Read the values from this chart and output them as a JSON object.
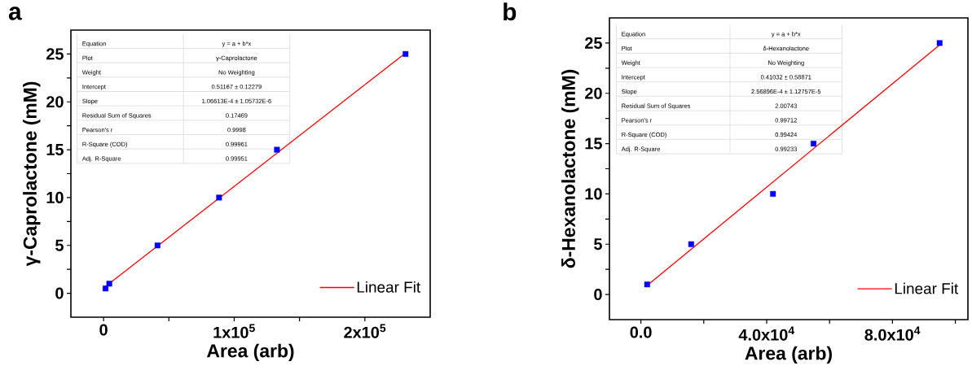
{
  "chart_data": [
    {
      "type": "scatter",
      "title": "a",
      "xlabel": "Area (arb)",
      "ylabel": "γ-Caprolactone (mM)",
      "xlim": [
        -25000,
        250000
      ],
      "ylim": [
        -2.5,
        27.5
      ],
      "xticks": [
        0,
        {
          "value": 50000,
          "label": null
        },
        {
          "value": 100000,
          "label": "1x10$^{5}$"
        },
        {
          "value": 150000,
          "label": null
        },
        {
          "value": 200000,
          "label": "2x10$^{5}$"
        }
      ],
      "yticks": [
        0,
        {
          "value": 2.5,
          "label": null
        },
        5,
        {
          "value": 7.5,
          "label": null
        },
        10,
        {
          "value": 12.5,
          "label": null
        },
        15,
        {
          "value": 17.5,
          "label": null
        },
        20,
        {
          "value": 22.5,
          "label": null
        },
        25
      ],
      "legend": "bottom right",
      "series": [
        {
          "type": "scatter",
          "marker": "square",
          "color": "#0000ff",
          "x": [
            1500,
            4400,
            41300,
            88400,
            132700,
            231100
          ],
          "values": [
            0.5,
            1,
            5,
            10,
            15,
            25
          ]
        },
        {
          "type": "line",
          "marker": "none",
          "name": "Linear Fit",
          "color": "#ff0000",
          "x": [
            1500,
            231100
          ],
          "values": [
            0.7,
            25.1
          ]
        }
      ],
      "annotations": [
        "Equation",
        "y = a + b*x",
        "Plot",
        "γ-Caprolactone",
        "Weight",
        "No Weighting",
        "Intercept",
        "0.51167 ± 0.12279",
        "Slope",
        "1.06613E-4 ± 1.05732E-6",
        "Residual Sum of Squares",
        "0.17469",
        "Pearson's r",
        "0.9998",
        "R-Square (COD)",
        "0.99961",
        "Adj. R-Square",
        "0.99951"
      ]
    },
    {
      "type": "scatter",
      "title": "b",
      "xlabel": "Area (arb)",
      "ylabel": "δ-Hexanolactone (mM)",
      "xlim": [
        -10000,
        104000
      ],
      "ylim": [
        -2.5,
        27.5
      ],
      "xticks": [
        {
          "value": 0,
          "label": "0.0"
        },
        {
          "value": 20000,
          "label": null
        },
        {
          "value": 40000,
          "label": "4.0x10$^{4}$"
        },
        {
          "value": 60000,
          "label": null
        },
        {
          "value": 80000,
          "label": "8.0x10$^{4}$"
        },
        {
          "value": 100000,
          "label": null
        }
      ],
      "yticks": [
        0,
        {
          "value": 2.5,
          "label": null
        },
        5,
        {
          "value": 7.5,
          "label": null
        },
        10,
        {
          "value": 12.5,
          "label": null
        },
        15,
        {
          "value": 17.5,
          "label": null
        },
        20,
        {
          "value": 22.5,
          "label": null
        },
        25
      ],
      "legend": "bottom right",
      "series": [
        {
          "type": "scatter",
          "marker": "square",
          "color": "#0000ff",
          "x": [
            2000,
            16000,
            42000,
            54900,
            95000
          ],
          "values": [
            1,
            5,
            10,
            15,
            25
          ]
        },
        {
          "type": "line",
          "marker": "none",
          "name": "Linear Fit",
          "color": "#ff0000",
          "x": [
            2000,
            95000
          ],
          "values": [
            0.9,
            24.8
          ]
        }
      ],
      "annotations": [
        "Equation",
        "y = a + b*x",
        "Plot",
        "δ-Hexanolactone",
        "Weight",
        "No Weighting",
        "Intercept",
        "0.41032 ± 0.58871",
        "Slope",
        "2.56896E-4 ± 1.12757E-5",
        "Residual Sum of Squares",
        "2.00743",
        "Pearson's r",
        "0.99712",
        "R-Square (COD)",
        "0.99424",
        "Adj. R-Square",
        "0.99233"
      ]
    }
  ]
}
